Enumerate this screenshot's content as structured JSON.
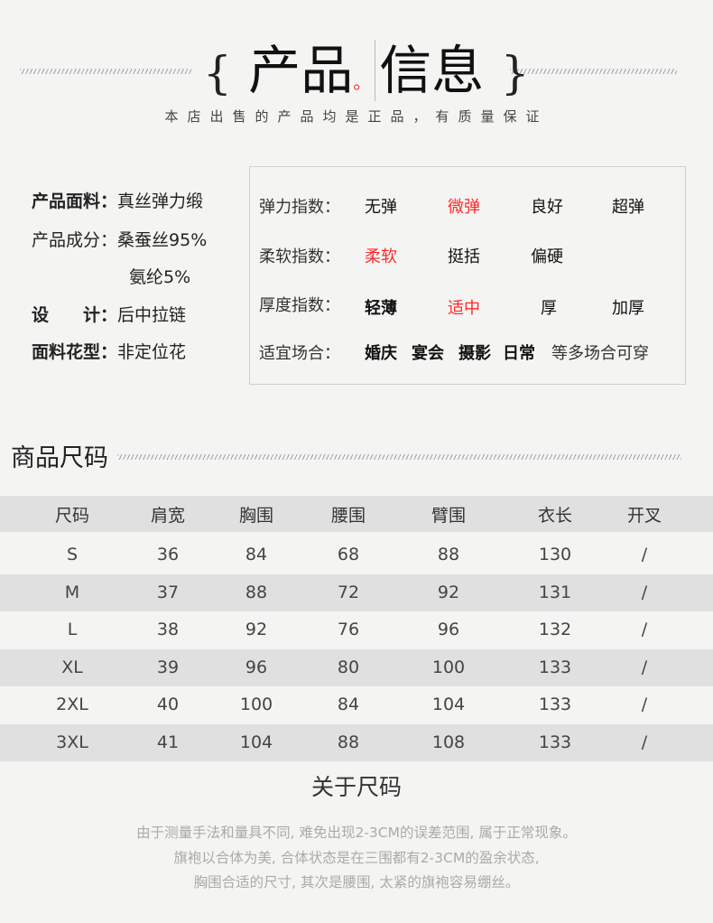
{
  "header": {
    "brace_left": "{",
    "title_a": "产品",
    "dot": "。",
    "title_b": "信息",
    "brace_right": "}",
    "subtitle": "本店出售的产品均是正品，有质量保证"
  },
  "info": [
    {
      "label": "产品面料：",
      "value": "真丝弹力缎"
    },
    {
      "label": "产品成分：",
      "value": "桑蚕丝95%"
    },
    {
      "label": "",
      "value": "氨纶5%"
    },
    {
      "label": "设　　计：",
      "value": "后中拉链"
    },
    {
      "label": "面料花型：",
      "value": "非定位花"
    }
  ],
  "indices": [
    {
      "label": "弹力指数：",
      "options": [
        "无弹",
        "微弹",
        "良好",
        "超弹"
      ],
      "selected": "微弹"
    },
    {
      "label": "柔软指数：",
      "options": [
        "柔软",
        "挺括",
        "偏硬"
      ],
      "selected": "柔软"
    },
    {
      "label": "厚度指数：",
      "options": [
        "轻薄",
        "适中",
        "厚",
        "加厚"
      ],
      "selected": "适中"
    },
    {
      "label": "适宜场合：",
      "options": [
        "婚庆",
        "宴会",
        "摄影",
        "日常"
      ],
      "suffix": "等多场合可穿"
    }
  ],
  "highlight_color": "#ff2a2a",
  "size_section": {
    "title": "商品尺码",
    "columns": [
      "尺码",
      "肩宽",
      "胸围",
      "腰围",
      "臂围",
      "衣长",
      "开叉"
    ],
    "rows": [
      [
        "S",
        "36",
        "84",
        "68",
        "88",
        "130",
        "/"
      ],
      [
        "M",
        "37",
        "88",
        "72",
        "92",
        "131",
        "/"
      ],
      [
        "L",
        "38",
        "92",
        "76",
        "96",
        "132",
        "/"
      ],
      [
        "XL",
        "39",
        "96",
        "80",
        "100",
        "133",
        "/"
      ],
      [
        "2XL",
        "40",
        "100",
        "84",
        "104",
        "133",
        "/"
      ],
      [
        "3XL",
        "41",
        "104",
        "88",
        "108",
        "133",
        "/"
      ]
    ]
  },
  "about": {
    "title": "关于尺码",
    "lines": [
      "由于测量手法和量具不同, 难免出现2-3CM的误差范围, 属于正常现象。",
      "旗袍以合体为美, 合体状态是在三围都有2-3CM的盈余状态,",
      "胸围合适的尺寸, 其次是腰围, 太紧的旗袍容易绷丝。"
    ]
  }
}
